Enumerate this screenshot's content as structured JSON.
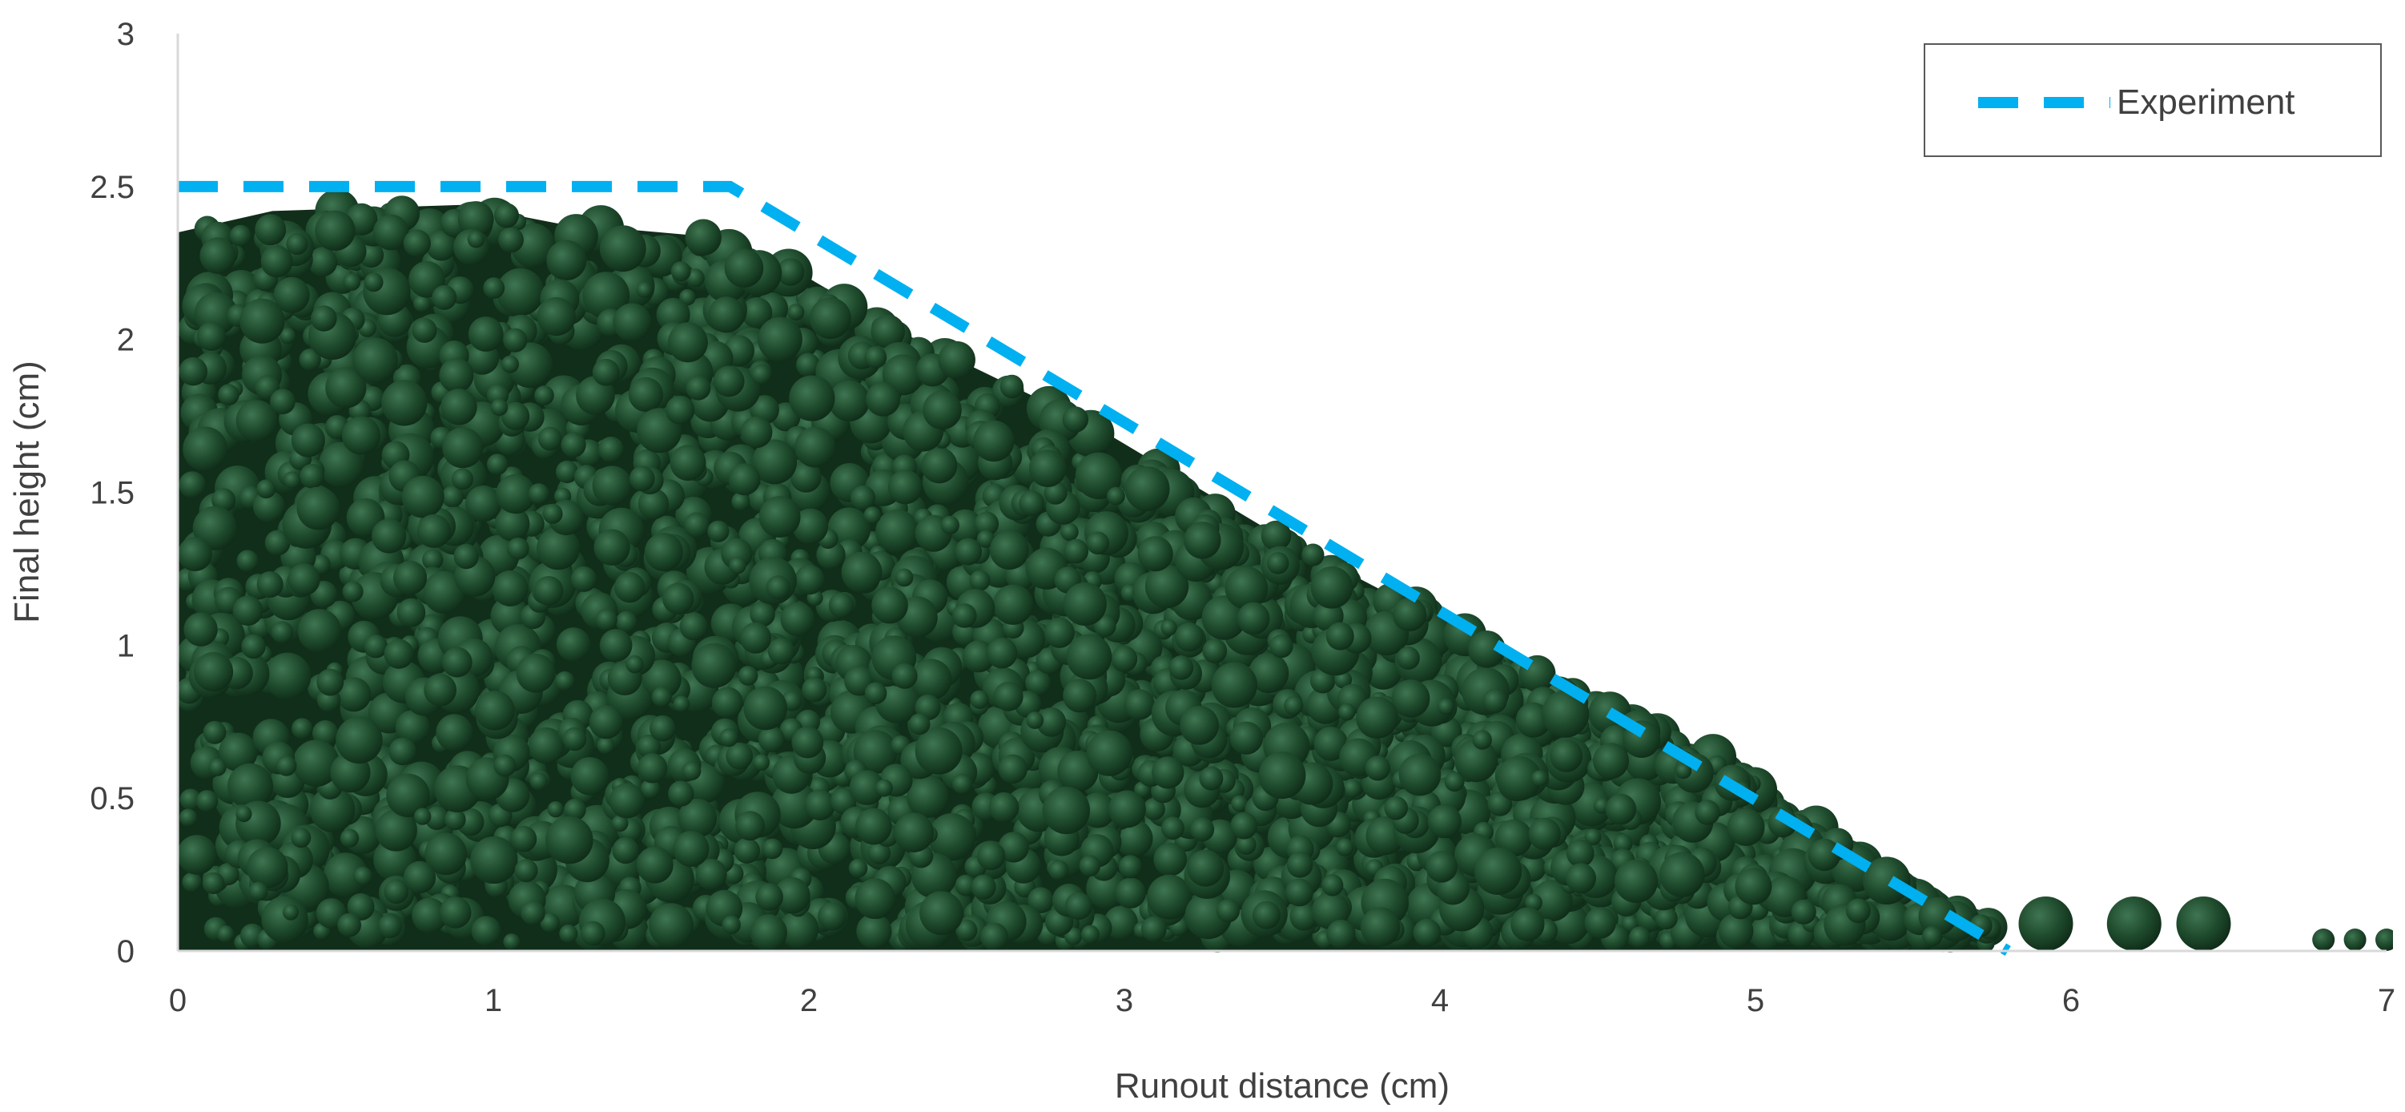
{
  "chart_data": {
    "type": "scatter",
    "title": "",
    "xlabel": "Runout distance (cm)",
    "ylabel": "Final height (cm)",
    "xlim": [
      0,
      7
    ],
    "ylim": [
      0,
      3
    ],
    "x_ticks": [
      "0",
      "1",
      "2",
      "3",
      "4",
      "5",
      "6",
      "7"
    ],
    "y_ticks": [
      "0",
      "0.5",
      "1",
      "1.5",
      "2",
      "2.5",
      "3"
    ],
    "grid": false,
    "legend_position": "top-right",
    "series": [
      {
        "name": "Experiment",
        "style": "dashed-line",
        "color": "#00b0f0",
        "x": [
          0,
          1.75,
          5.8
        ],
        "y": [
          2.5,
          2.5,
          0
        ]
      }
    ],
    "particles": {
      "color": "#1e4a2c",
      "profile_x": [
        0,
        0.3,
        0.9,
        1.2,
        1.75,
        2.0,
        2.3,
        2.9,
        3.5,
        4.0,
        4.5,
        4.9,
        5.3,
        5.5,
        5.75
      ],
      "profile_y": [
        2.35,
        2.42,
        2.44,
        2.38,
        2.33,
        2.2,
        2.02,
        1.72,
        1.35,
        1.08,
        0.8,
        0.62,
        0.33,
        0.17,
        0.08
      ],
      "scattered": [
        {
          "x": 5.92,
          "y": 0.1
        },
        {
          "x": 6.2,
          "y": 0.1
        },
        {
          "x": 6.42,
          "y": 0.1
        },
        {
          "x": 6.8,
          "y": 0.06
        },
        {
          "x": 6.9,
          "y": 0.06
        },
        {
          "x": 7.0,
          "y": 0.06
        }
      ]
    }
  }
}
